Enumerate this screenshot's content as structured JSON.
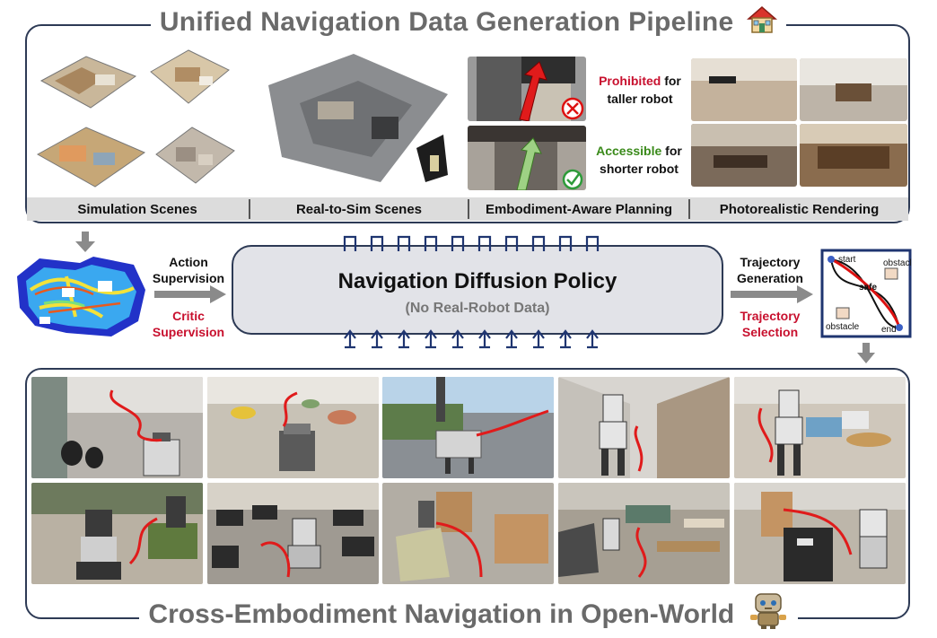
{
  "top": {
    "title": "Unified Navigation Data Generation Pipeline",
    "labels": [
      "Simulation Scenes",
      "Real-to-Sim Scenes",
      "Embodiment-Aware Planning",
      "Photorealistic Rendering"
    ],
    "prohibited_word": "Prohibited",
    "prohibited_rest": " for",
    "prohibited_line2": "taller robot",
    "accessible_word": "Accessible",
    "accessible_rest": " for",
    "accessible_line2": "shorter robot"
  },
  "middle": {
    "action_l1": "Action",
    "action_l2": "Supervision",
    "critic_l1": "Critic",
    "critic_l2": "Supervision",
    "policy_title": "Navigation Diffusion Policy",
    "policy_sub": "(No Real-Robot Data)",
    "traj_gen_l1": "Trajectory",
    "traj_gen_l2": "Generation",
    "traj_sel_l1": "Trajectory",
    "traj_sel_l2": "Selection",
    "diagram": {
      "start": "start",
      "end": "end",
      "safe": "safe",
      "obstacle_top": "obstacle",
      "obstacle_bottom": "obstacle"
    }
  },
  "bottom": {
    "title": "Cross-Embodiment Navigation in Open-World"
  },
  "colors": {
    "frame": "#2d3a55",
    "red": "#c8102e",
    "green": "#3a8a1a",
    "title_gray": "#6a6a6a"
  }
}
